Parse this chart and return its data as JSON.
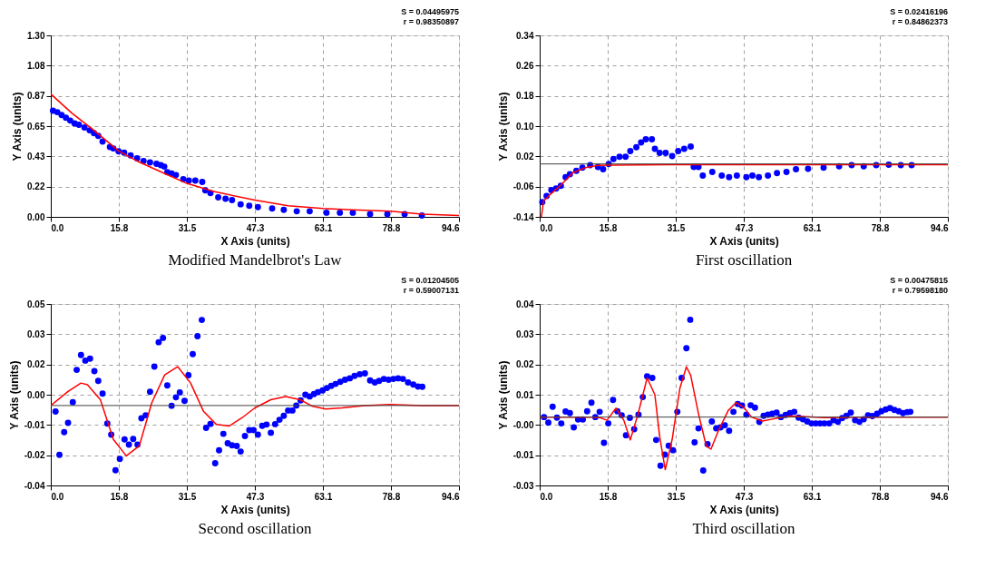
{
  "chart_data": [
    {
      "type": "scatter",
      "title": "Modified Mandelbrot's Law",
      "xlabel": "X Axis (units)",
      "ylabel": "Y Axis (units)",
      "annotations": [
        "S = 0.04495975",
        "r = 0.98350897"
      ],
      "xlim": [
        0,
        94.6
      ],
      "ylim": [
        0,
        1.3
      ],
      "xticks": [
        {
          "value": 0,
          "label": "0.0"
        },
        {
          "value": 15.77,
          "label": "15.8"
        },
        {
          "value": 31.53,
          "label": "31.5"
        },
        {
          "value": 47.3,
          "label": "47.3"
        },
        {
          "value": 63.07,
          "label": "63.1"
        },
        {
          "value": 78.83,
          "label": "78.8"
        },
        {
          "value": 94.6,
          "label": "94.6"
        }
      ],
      "yticks": [
        {
          "value": 0,
          "label": "0.00"
        },
        {
          "value": 0.2167,
          "label": "0.22"
        },
        {
          "value": 0.4333,
          "label": "0.43"
        },
        {
          "value": 0.65,
          "label": "0.65"
        },
        {
          "value": 0.8667,
          "label": "0.87"
        },
        {
          "value": 1.0833,
          "label": "1.08"
        },
        {
          "value": 1.3,
          "label": "1.30"
        }
      ],
      "grid": true,
      "series": [
        {
          "marker": "circle",
          "color": "#0000ff",
          "x": [
            0.5,
            1.5,
            2.5,
            3.5,
            4.5,
            5.5,
            6.5,
            7.8,
            9,
            10,
            11,
            12,
            13.7,
            14.5,
            15.7,
            17,
            18.5,
            20,
            21.5,
            23,
            24.5,
            25.5,
            26.3,
            27,
            28,
            29,
            30.7,
            32,
            33.5,
            35.1,
            35.8,
            37,
            38.8,
            40.5,
            42,
            44,
            46,
            48,
            51.3,
            54,
            57,
            60,
            63.9,
            67,
            70,
            74,
            78,
            82,
            86
          ],
          "values": [
            0.76,
            0.75,
            0.73,
            0.71,
            0.69,
            0.67,
            0.66,
            0.64,
            0.62,
            0.6,
            0.58,
            0.54,
            0.5,
            0.49,
            0.47,
            0.46,
            0.44,
            0.42,
            0.4,
            0.39,
            0.38,
            0.37,
            0.36,
            0.32,
            0.31,
            0.3,
            0.27,
            0.26,
            0.26,
            0.25,
            0.19,
            0.17,
            0.14,
            0.13,
            0.12,
            0.09,
            0.08,
            0.07,
            0.06,
            0.05,
            0.04,
            0.04,
            0.03,
            0.03,
            0.03,
            0.02,
            0.02,
            0.02,
            0.01
          ]
        },
        {
          "type": "line",
          "color": "#ff0000",
          "x": [
            0,
            5,
            10,
            15.8,
            20,
            25,
            31.5,
            38,
            47.3,
            55,
            63.1,
            70,
            78.8,
            86,
            94.6
          ],
          "values": [
            0.88,
            0.74,
            0.62,
            0.47,
            0.4,
            0.33,
            0.24,
            0.18,
            0.12,
            0.08,
            0.06,
            0.05,
            0.04,
            0.02,
            0.01
          ]
        }
      ]
    },
    {
      "type": "scatter",
      "title": "First oscillation",
      "xlabel": "X Axis (units)",
      "ylabel": "Y Axis (units)",
      "annotations": [
        "S = 0.02416196",
        "r = 0.84862373"
      ],
      "xlim": [
        0,
        94.6
      ],
      "ylim": [
        -0.14,
        0.34
      ],
      "xticks": [
        {
          "value": 0,
          "label": "0.0"
        },
        {
          "value": 15.77,
          "label": "15.8"
        },
        {
          "value": 31.53,
          "label": "31.5"
        },
        {
          "value": 47.3,
          "label": "47.3"
        },
        {
          "value": 63.07,
          "label": "63.1"
        },
        {
          "value": 78.83,
          "label": "78.8"
        },
        {
          "value": 94.6,
          "label": "94.6"
        }
      ],
      "yticks": [
        -0.14,
        -0.06,
        0.02,
        {
          "value": 0.1,
          "label": "0.10"
        },
        0.18,
        0.26,
        0.34
      ],
      "grid": true,
      "ref_lines": [
        {
          "axis": "y",
          "value": 0,
          "color": "#404040"
        }
      ],
      "series": [
        {
          "marker": "circle",
          "color": "#0000ff",
          "x": [
            0.6,
            1.6,
            2.7,
            3.8,
            4.9,
            6,
            7,
            8.5,
            9.9,
            11.7,
            13.5,
            14.7,
            16,
            17.1,
            18.5,
            19.9,
            21,
            22.4,
            23.5,
            24.6,
            26,
            26.7,
            27.8,
            29.2,
            30.7,
            32.1,
            33.5,
            35,
            35.7,
            36.8,
            37.8,
            40,
            42.2,
            43.9,
            45.7,
            47.9,
            49.3,
            50.8,
            52.9,
            55,
            57.2,
            59.4,
            62.2,
            65.8,
            69.4,
            72.3,
            75.1,
            78,
            80.9,
            83.7,
            86.2
          ],
          "values": [
            -0.101,
            -0.085,
            -0.069,
            -0.065,
            -0.058,
            -0.035,
            -0.027,
            -0.018,
            -0.01,
            -0.003,
            -0.008,
            -0.014,
            0.0,
            0.013,
            0.019,
            0.019,
            0.034,
            0.044,
            0.057,
            0.065,
            0.065,
            0.04,
            0.029,
            0.029,
            0.021,
            0.034,
            0.04,
            0.046,
            -0.008,
            -0.008,
            -0.031,
            -0.021,
            -0.031,
            -0.035,
            -0.031,
            -0.035,
            -0.031,
            -0.035,
            -0.031,
            -0.024,
            -0.021,
            -0.014,
            -0.013,
            -0.01,
            -0.006,
            -0.003,
            -0.006,
            -0.003,
            -0.002,
            -0.003,
            -0.003
          ]
        },
        {
          "type": "line",
          "color": "#ff0000",
          "x": [
            0.4,
            0.9,
            2.4,
            4.9,
            7.7,
            10.6,
            13.5,
            17,
            30,
            50,
            70,
            94.6
          ],
          "values": [
            -0.14,
            -0.098,
            -0.081,
            -0.056,
            -0.023,
            -0.01,
            -0.004,
            -0.003,
            -0.002,
            -0.002,
            -0.002,
            -0.002
          ]
        }
      ]
    },
    {
      "type": "scatter",
      "title": "Second oscillation",
      "xlabel": "X Axis (units)",
      "ylabel": "Y Axis (units)",
      "annotations": [
        "S = 0.01204505",
        "r = 0.59007131"
      ],
      "xlim": [
        0,
        94.6
      ],
      "ylim": [
        -0.037,
        0.047
      ],
      "xticks": [
        {
          "value": 0,
          "label": "0.0"
        },
        {
          "value": 15.77,
          "label": "15.8"
        },
        {
          "value": 31.53,
          "label": "31.5"
        },
        {
          "value": 47.3,
          "label": "47.3"
        },
        {
          "value": 63.07,
          "label": "63.1"
        },
        {
          "value": 78.83,
          "label": "78.8"
        },
        {
          "value": 94.6,
          "label": "94.6"
        }
      ],
      "yticks": [
        {
          "value": -0.037,
          "label": "-0.04"
        },
        {
          "value": -0.023,
          "label": "-0.02"
        },
        {
          "value": -0.009,
          "label": "-0.01"
        },
        {
          "value": 0.005,
          "label": "0.00"
        },
        {
          "value": 0.019,
          "label": "0.02"
        },
        {
          "value": 0.033,
          "label": "0.03"
        },
        {
          "value": 0.047,
          "label": "0.05"
        }
      ],
      "grid": true,
      "ref_lines": [
        {
          "axis": "y",
          "value": 0,
          "color": "#404040"
        }
      ],
      "series": [
        {
          "marker": "circle",
          "color": "#0000ff",
          "x": [
            1.1,
            2,
            3.1,
            4,
            5.1,
            6,
            7,
            8,
            9.1,
            10.1,
            11,
            12,
            13.1,
            14,
            15,
            16,
            17.1,
            18.1,
            19.1,
            20.1,
            21,
            22,
            23,
            24,
            25,
            26,
            27,
            28,
            29,
            29.9,
            31,
            31.9,
            32.9,
            34,
            35,
            36,
            37,
            38.1,
            39,
            40,
            41,
            42,
            43.1,
            44,
            45,
            46,
            47,
            48,
            49,
            50,
            51,
            52,
            53,
            54,
            55,
            56,
            56.9,
            57.9,
            59,
            60,
            61,
            61.9,
            63,
            64,
            65,
            66,
            67.1,
            68.2,
            69.3,
            70.4,
            71.6,
            72.8,
            74,
            75.1,
            76.1,
            77.2,
            78.3,
            79.4,
            80.5,
            81.6,
            82.8,
            84,
            85.1,
            86.1
          ],
          "values": [
            -0.0028,
            -0.0228,
            -0.0123,
            -0.008,
            0.0015,
            0.0165,
            0.0234,
            0.0208,
            0.0217,
            0.0159,
            0.0114,
            0.0055,
            -0.0083,
            -0.0135,
            -0.03,
            -0.0247,
            -0.0157,
            -0.0181,
            -0.0155,
            -0.0181,
            -0.0059,
            -0.0045,
            0.0064,
            0.018,
            0.0293,
            0.0313,
            0.0093,
            -0.0001,
            0.0038,
            0.0061,
            0.0022,
            0.014,
            0.0238,
            0.0321,
            0.0396,
            -0.0103,
            -0.0085,
            -0.0267,
            -0.0207,
            -0.0131,
            -0.0175,
            -0.0184,
            -0.0187,
            -0.0213,
            -0.0141,
            -0.0114,
            -0.0114,
            -0.0135,
            -0.0094,
            -0.0088,
            -0.0126,
            -0.0086,
            -0.0066,
            -0.0048,
            -0.0023,
            -0.0023,
            0.0,
            0.0024,
            0.005,
            0.0042,
            0.0053,
            0.0062,
            0.007,
            0.0081,
            0.0091,
            0.01,
            0.011,
            0.0119,
            0.0126,
            0.0137,
            0.0145,
            0.0149,
            0.0116,
            0.0107,
            0.0114,
            0.0123,
            0.0119,
            0.0123,
            0.0126,
            0.0123,
            0.0107,
            0.0097,
            0.0088,
            0.0087
          ]
        },
        {
          "type": "line",
          "color": "#ff0000",
          "x": [
            0,
            4,
            7,
            8.5,
            11.5,
            14.5,
            17.5,
            20.5,
            23.4,
            26.4,
            29.4,
            32.4,
            35.4,
            38.4,
            41.3,
            44.3,
            47.3,
            51,
            54.4,
            57.8,
            60.7,
            63.7,
            67.5,
            72.7,
            78.7,
            86.1,
            94.6
          ],
          "values": [
            0.0,
            0.0065,
            0.0104,
            0.0096,
            0.0027,
            -0.0157,
            -0.0233,
            -0.0187,
            0.0012,
            0.0142,
            0.018,
            0.0104,
            -0.0027,
            -0.0088,
            -0.0095,
            -0.0057,
            -0.0011,
            0.0027,
            0.0042,
            0.0027,
            -0.0004,
            -0.0016,
            -0.0011,
            0.0,
            0.0005,
            0.0,
            0.0
          ]
        }
      ]
    },
    {
      "type": "scatter",
      "title": "Third oscillation",
      "xlabel": "X Axis (units)",
      "ylabel": "Y Axis (units)",
      "annotations": [
        "S = 0.00475815",
        "r = 0.79598180"
      ],
      "xlim": [
        0,
        94.6
      ],
      "ylim": [
        -0.026,
        0.043
      ],
      "xticks": [
        {
          "value": 0,
          "label": "0.0"
        },
        {
          "value": 15.77,
          "label": "15.8"
        },
        {
          "value": 31.53,
          "label": "31.5"
        },
        {
          "value": 47.3,
          "label": "47.3"
        },
        {
          "value": 63.07,
          "label": "63.1"
        },
        {
          "value": 78.83,
          "label": "78.8"
        },
        {
          "value": 94.6,
          "label": "94.6"
        }
      ],
      "yticks": [
        {
          "value": -0.026,
          "label": "-0.03"
        },
        {
          "value": -0.0145,
          "label": "-0.01"
        },
        {
          "value": -0.003,
          "label": "-0.00"
        },
        {
          "value": 0.0085,
          "label": "0.01"
        },
        {
          "value": 0.02,
          "label": "0.02"
        },
        {
          "value": 0.0315,
          "label": "0.03"
        },
        {
          "value": 0.043,
          "label": "0.04"
        }
      ],
      "grid": true,
      "ref_lines": [
        {
          "axis": "y",
          "value": 0,
          "color": "#404040"
        }
      ],
      "series": [
        {
          "marker": "circle",
          "color": "#0000ff",
          "x": [
            1,
            2,
            3,
            4,
            5,
            6,
            7,
            7.9,
            8.9,
            10,
            11,
            12,
            12.9,
            13.9,
            14.9,
            15.9,
            17,
            18,
            19,
            20,
            20.9,
            21.9,
            22.9,
            23.9,
            24.9,
            26.1,
            27,
            28,
            29,
            29.9,
            30.9,
            31.9,
            32.9,
            34,
            34.9,
            35.9,
            36.8,
            37.9,
            38.9,
            39.9,
            40.9,
            41.9,
            42.9,
            43.9,
            44.9,
            45.9,
            46.9,
            47.9,
            48.9,
            49.9,
            50.9,
            51.9,
            52.9,
            53.9,
            54.9,
            55.9,
            57,
            58,
            59,
            60,
            61,
            62,
            63,
            64,
            65,
            66,
            67.1,
            68.1,
            69.1,
            70.1,
            71.1,
            72.1,
            73.1,
            74.1,
            75.1,
            76.1,
            77.1,
            78.2,
            79.2,
            80.2,
            81.2,
            82.2,
            83.2,
            84.2,
            85.2,
            85.9
          ],
          "values": [
            0.0,
            -0.0021,
            0.0039,
            -0.0002,
            -0.0024,
            0.0021,
            0.0015,
            -0.0039,
            -0.0009,
            -0.0009,
            0.0022,
            0.0055,
            0.0,
            0.002,
            -0.0098,
            -0.0024,
            0.0065,
            0.0022,
            0.0007,
            -0.0069,
            -0.0003,
            -0.0046,
            0.0009,
            0.0076,
            0.0155,
            0.0149,
            -0.0087,
            -0.0185,
            -0.0143,
            -0.0109,
            -0.0126,
            0.002,
            0.0149,
            0.0262,
            0.037,
            -0.0096,
            -0.0043,
            -0.0203,
            -0.0103,
            -0.0017,
            -0.0043,
            -0.0039,
            -0.0031,
            -0.0052,
            0.002,
            0.005,
            0.0044,
            0.0009,
            0.0045,
            0.0036,
            -0.0018,
            0.0005,
            0.0009,
            0.0013,
            0.0017,
            0.0,
            0.0008,
            0.0015,
            0.002,
            -0.0002,
            -0.0008,
            -0.0017,
            -0.0024,
            -0.0024,
            -0.0024,
            -0.0024,
            -0.0024,
            -0.0012,
            -0.0018,
            -0.0004,
            0.0005,
            0.0017,
            -0.0012,
            -0.0018,
            -0.0008,
            0.0007,
            0.0004,
            0.0013,
            0.0022,
            0.0029,
            0.0034,
            0.0027,
            0.0022,
            0.0015,
            0.0019,
            0.002
          ]
        },
        {
          "type": "line",
          "color": "#ff0000",
          "x": [
            0,
            12,
            14,
            15.6,
            17.7,
            19.5,
            21,
            22.8,
            24.9,
            26.7,
            27.8,
            29.1,
            30.7,
            32.5,
            34,
            35,
            36.8,
            38.6,
            39.7,
            41.5,
            43.7,
            45.5,
            47.3,
            49.1,
            51.6,
            54.5,
            58.1,
            61,
            66,
            73.3,
            94.6
          ],
          "values": [
            0.0,
            0.0,
            -0.0002,
            -0.0012,
            0.0034,
            -0.0012,
            -0.0087,
            0.0012,
            0.0149,
            0.0085,
            -0.0073,
            -0.02,
            -0.0085,
            0.011,
            0.0191,
            0.0159,
            0.0013,
            -0.011,
            -0.0122,
            -0.0049,
            0.0025,
            0.0055,
            0.0037,
            0.0,
            -0.0015,
            -0.0006,
            0.0004,
            0.0002,
            -0.0002,
            0.0,
            0.0
          ]
        }
      ]
    }
  ]
}
